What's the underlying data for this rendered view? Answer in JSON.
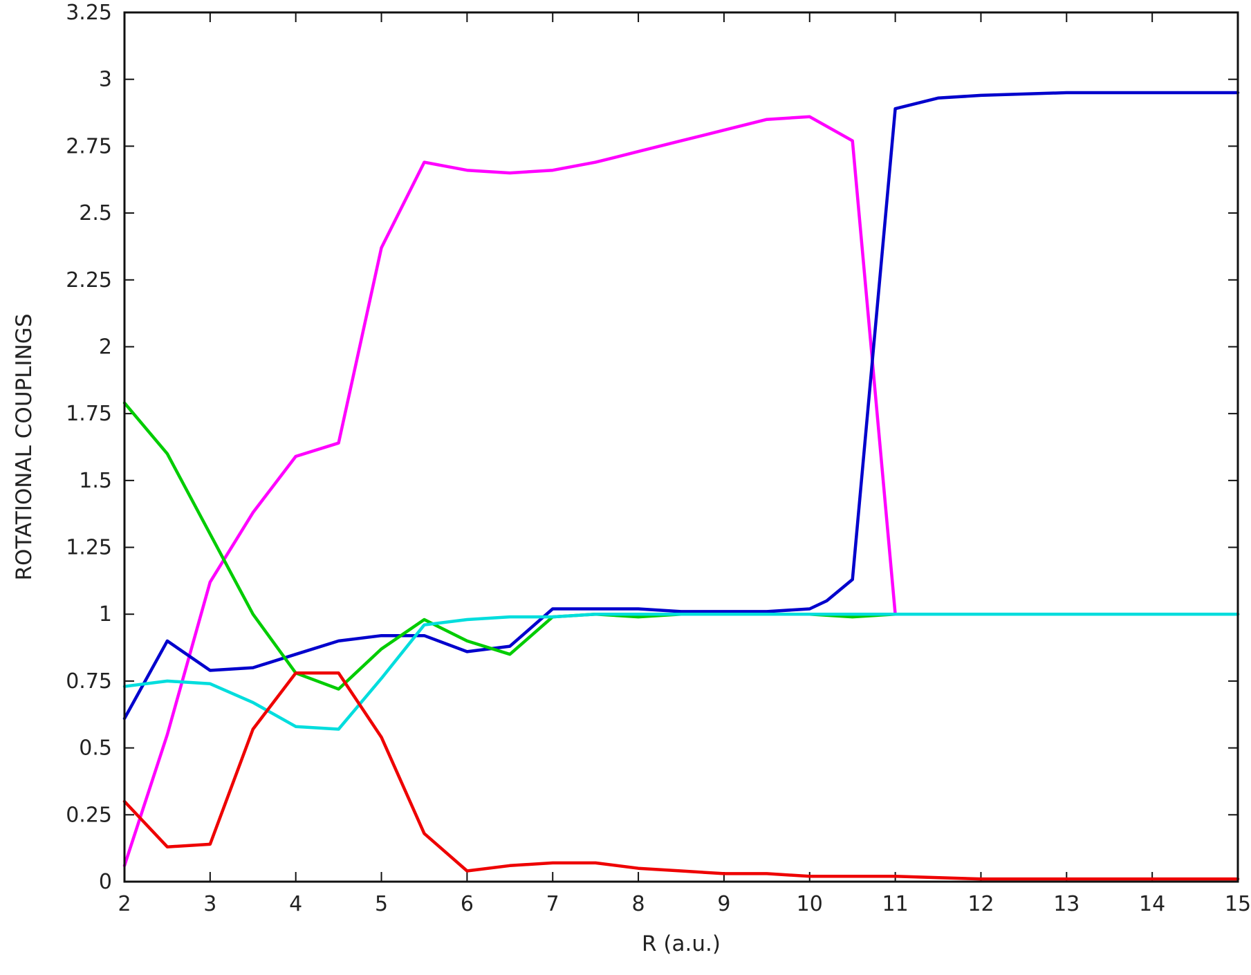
{
  "chart_data": {
    "type": "line",
    "title": "",
    "xlabel": "R (a.u.)",
    "ylabel": "ROTATIONAL COUPLINGS",
    "xlim": [
      2,
      15
    ],
    "ylim": [
      0,
      3.25
    ],
    "x_ticks": [
      2,
      3,
      4,
      5,
      6,
      7,
      8,
      9,
      10,
      11,
      12,
      13,
      14,
      15
    ],
    "x_tick_labels": [
      "2",
      "3",
      "4",
      "5",
      "6",
      "7",
      "8",
      "9",
      "10",
      "11",
      "12",
      "13",
      "14",
      "15"
    ],
    "y_ticks": [
      0,
      0.25,
      0.5,
      0.75,
      1,
      1.25,
      1.5,
      1.75,
      2,
      2.25,
      2.5,
      2.75,
      3,
      3.25
    ],
    "y_tick_labels": [
      "0",
      "0.25",
      "0.5",
      "0.75",
      "1",
      "1.25",
      "1.5",
      "1.75",
      "2",
      "2.25",
      "2.5",
      "2.75",
      "3",
      "3.25"
    ],
    "grid": false,
    "legend": "none",
    "series": [
      {
        "color": "#ff00ff",
        "x": [
          2,
          2.5,
          3,
          3.5,
          4,
          4.5,
          5,
          5.5,
          6,
          6.5,
          7,
          7.5,
          8,
          8.5,
          9,
          9.5,
          10,
          10.5,
          11
        ],
        "y": [
          0.06,
          0.55,
          1.12,
          1.38,
          1.59,
          1.64,
          2.37,
          2.69,
          2.66,
          2.65,
          2.66,
          2.69,
          2.73,
          2.77,
          2.81,
          2.85,
          2.86,
          2.77,
          1.0
        ]
      },
      {
        "color": "#0000cc",
        "x": [
          2,
          2.5,
          3,
          3.5,
          4,
          4.5,
          5,
          5.5,
          6,
          6.5,
          7,
          7.5,
          8,
          8.5,
          9,
          9.5,
          10,
          10.2,
          10.5,
          11,
          11.5,
          12,
          13,
          14,
          15
        ],
        "y": [
          0.61,
          0.9,
          0.79,
          0.8,
          0.85,
          0.9,
          0.92,
          0.92,
          0.86,
          0.88,
          1.02,
          1.02,
          1.02,
          1.01,
          1.01,
          1.01,
          1.02,
          1.05,
          1.13,
          2.89,
          2.93,
          2.94,
          2.95,
          2.95,
          2.95
        ]
      },
      {
        "color": "#00cc00",
        "x": [
          2,
          2.5,
          3,
          3.5,
          4,
          4.5,
          5,
          5.5,
          6,
          6.5,
          7,
          7.5,
          8,
          8.5,
          9,
          9.5,
          10,
          10.5,
          11,
          12,
          13,
          14,
          15
        ],
        "y": [
          1.79,
          1.6,
          1.3,
          1.0,
          0.78,
          0.72,
          0.87,
          0.98,
          0.9,
          0.85,
          0.99,
          1.0,
          0.99,
          1.0,
          1.0,
          1.0,
          1.0,
          0.99,
          1.0,
          1.0,
          1.0,
          1.0,
          1.0
        ]
      },
      {
        "color": "#00dddd",
        "x": [
          2,
          2.5,
          3,
          3.5,
          4,
          4.5,
          5,
          5.5,
          6,
          6.5,
          7,
          7.5,
          8,
          8.5,
          9,
          9.5,
          10,
          10.5,
          11,
          12,
          13,
          14,
          15
        ],
        "y": [
          0.73,
          0.75,
          0.74,
          0.67,
          0.58,
          0.57,
          0.76,
          0.96,
          0.98,
          0.99,
          0.99,
          1.0,
          1.0,
          1.0,
          1.0,
          1.0,
          1.0,
          1.0,
          1.0,
          1.0,
          1.0,
          1.0,
          1.0
        ]
      },
      {
        "color": "#ee0000",
        "x": [
          2,
          2.5,
          3,
          3.5,
          4,
          4.5,
          5,
          5.5,
          6,
          6.5,
          7,
          7.5,
          8,
          8.5,
          9,
          9.5,
          10,
          11,
          12,
          13,
          14,
          15
        ],
        "y": [
          0.3,
          0.13,
          0.14,
          0.57,
          0.78,
          0.78,
          0.54,
          0.18,
          0.04,
          0.06,
          0.07,
          0.07,
          0.05,
          0.04,
          0.03,
          0.03,
          0.02,
          0.02,
          0.01,
          0.01,
          0.01,
          0.01
        ]
      }
    ]
  }
}
